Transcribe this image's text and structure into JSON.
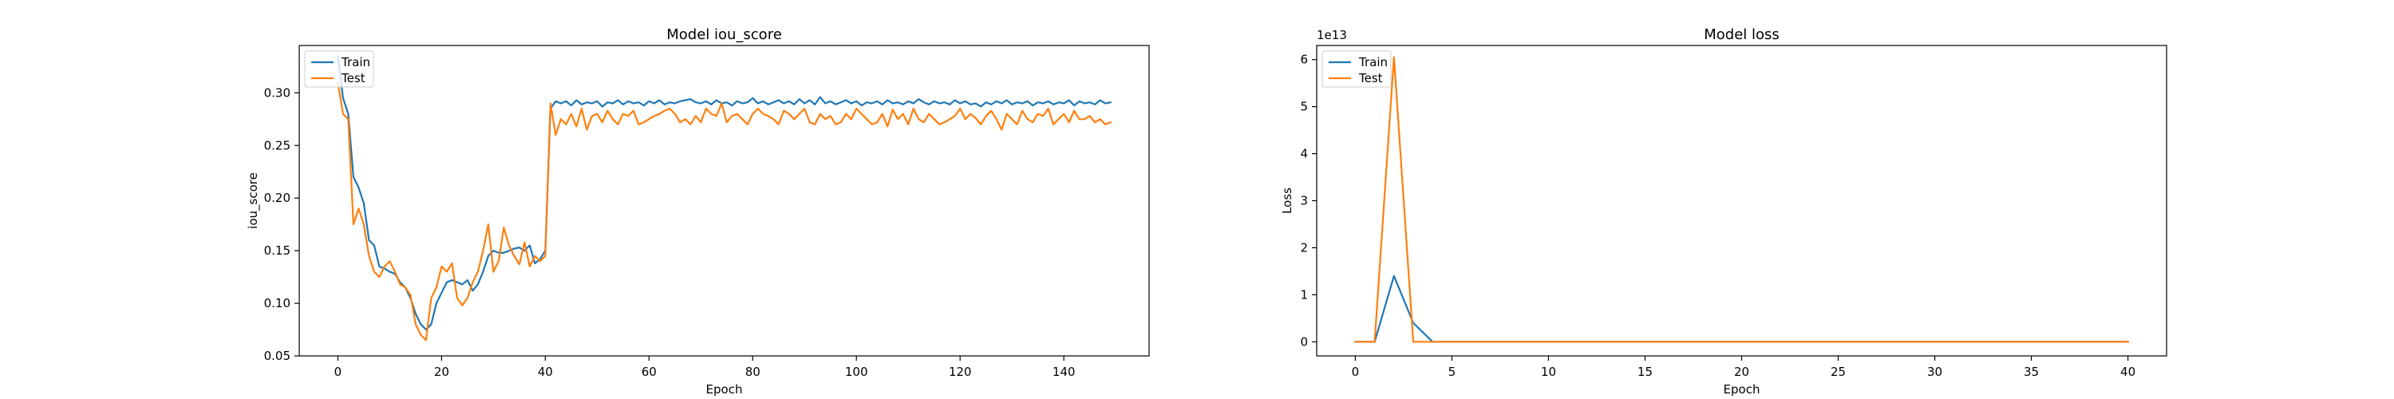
{
  "chart_data": [
    {
      "type": "line",
      "title": "Model iou_score",
      "xlabel": "Epoch",
      "ylabel": "iou_score",
      "xlim": [
        -7.45,
        156.45
      ],
      "ylim": [
        0.05,
        0.345
      ],
      "xticks": [
        0,
        20,
        40,
        60,
        80,
        100,
        120,
        140
      ],
      "xtick_labels": [
        "0",
        "20",
        "40",
        "60",
        "80",
        "100",
        "120",
        "140"
      ],
      "yticks": [
        0.05,
        0.1,
        0.15,
        0.2,
        0.25,
        0.3
      ],
      "ytick_labels": [
        "0.05",
        "0.10",
        "0.15",
        "0.20",
        "0.25",
        "0.30"
      ],
      "grid": false,
      "legend": {
        "position": "top-left",
        "entries": [
          "Train",
          "Test"
        ]
      },
      "series": [
        {
          "name": "Train",
          "color": "#1f77b4",
          "x": [
            0,
            1,
            2,
            3,
            4,
            5,
            6,
            7,
            8,
            9,
            10,
            11,
            12,
            13,
            14,
            15,
            16,
            17,
            18,
            19,
            20,
            21,
            22,
            23,
            24,
            25,
            26,
            27,
            28,
            29,
            30,
            31,
            32,
            33,
            34,
            35,
            36,
            37,
            38,
            39,
            40,
            41,
            42,
            43,
            44,
            45,
            46,
            47,
            48,
            49,
            50,
            51,
            52,
            53,
            54,
            55,
            56,
            57,
            58,
            59,
            60,
            61,
            62,
            63,
            64,
            65,
            66,
            67,
            68,
            69,
            70,
            71,
            72,
            73,
            74,
            75,
            76,
            77,
            78,
            79,
            80,
            81,
            82,
            83,
            84,
            85,
            86,
            87,
            88,
            89,
            90,
            91,
            92,
            93,
            94,
            95,
            96,
            97,
            98,
            99,
            100,
            101,
            102,
            103,
            104,
            105,
            106,
            107,
            108,
            109,
            110,
            111,
            112,
            113,
            114,
            115,
            116,
            117,
            118,
            119,
            120,
            121,
            122,
            123,
            124,
            125,
            126,
            127,
            128,
            129,
            130,
            131,
            132,
            133,
            134,
            135,
            136,
            137,
            138,
            139,
            140,
            141,
            142,
            143,
            144,
            145,
            146,
            147,
            148,
            149
          ],
          "y": [
            0.335,
            0.295,
            0.28,
            0.22,
            0.21,
            0.195,
            0.16,
            0.155,
            0.135,
            0.133,
            0.13,
            0.128,
            0.12,
            0.115,
            0.105,
            0.09,
            0.08,
            0.075,
            0.08,
            0.1,
            0.11,
            0.12,
            0.122,
            0.12,
            0.118,
            0.122,
            0.112,
            0.118,
            0.13,
            0.145,
            0.15,
            0.148,
            0.148,
            0.15,
            0.152,
            0.153,
            0.15,
            0.155,
            0.138,
            0.142,
            0.15,
            0.285,
            0.292,
            0.29,
            0.292,
            0.288,
            0.293,
            0.289,
            0.291,
            0.29,
            0.292,
            0.287,
            0.291,
            0.29,
            0.293,
            0.289,
            0.292,
            0.29,
            0.291,
            0.288,
            0.292,
            0.29,
            0.293,
            0.289,
            0.291,
            0.29,
            0.292,
            0.293,
            0.294,
            0.291,
            0.29,
            0.292,
            0.289,
            0.293,
            0.29,
            0.291,
            0.288,
            0.292,
            0.29,
            0.291,
            0.295,
            0.29,
            0.292,
            0.289,
            0.291,
            0.293,
            0.29,
            0.292,
            0.289,
            0.294,
            0.29,
            0.293,
            0.289,
            0.296,
            0.29,
            0.292,
            0.289,
            0.291,
            0.293,
            0.29,
            0.292,
            0.288,
            0.291,
            0.29,
            0.292,
            0.289,
            0.293,
            0.29,
            0.291,
            0.289,
            0.292,
            0.29,
            0.294,
            0.291,
            0.289,
            0.292,
            0.29,
            0.291,
            0.289,
            0.293,
            0.29,
            0.292,
            0.289,
            0.29,
            0.287,
            0.291,
            0.289,
            0.292,
            0.29,
            0.293,
            0.289,
            0.291,
            0.29,
            0.292,
            0.288,
            0.291,
            0.29,
            0.292,
            0.289,
            0.291,
            0.29,
            0.293,
            0.288,
            0.292,
            0.29,
            0.291,
            0.289,
            0.293,
            0.29,
            0.291
          ]
        },
        {
          "name": "Test",
          "color": "#ff7f0e",
          "x": [
            0,
            1,
            2,
            3,
            4,
            5,
            6,
            7,
            8,
            9,
            10,
            11,
            12,
            13,
            14,
            15,
            16,
            17,
            18,
            19,
            20,
            21,
            22,
            23,
            24,
            25,
            26,
            27,
            28,
            29,
            30,
            31,
            32,
            33,
            34,
            35,
            36,
            37,
            38,
            39,
            40,
            41,
            42,
            43,
            44,
            45,
            46,
            47,
            48,
            49,
            50,
            51,
            52,
            53,
            54,
            55,
            56,
            57,
            58,
            59,
            60,
            61,
            62,
            63,
            64,
            65,
            66,
            67,
            68,
            69,
            70,
            71,
            72,
            73,
            74,
            75,
            76,
            77,
            78,
            79,
            80,
            81,
            82,
            83,
            84,
            85,
            86,
            87,
            88,
            89,
            90,
            91,
            92,
            93,
            94,
            95,
            96,
            97,
            98,
            99,
            100,
            101,
            102,
            103,
            104,
            105,
            106,
            107,
            108,
            109,
            110,
            111,
            112,
            113,
            114,
            115,
            116,
            117,
            118,
            119,
            120,
            121,
            122,
            123,
            124,
            125,
            126,
            127,
            128,
            129,
            130,
            131,
            132,
            133,
            134,
            135,
            136,
            137,
            138,
            139,
            140,
            141,
            142,
            143,
            144,
            145,
            146,
            147,
            148,
            149
          ],
          "y": [
            0.31,
            0.28,
            0.275,
            0.175,
            0.19,
            0.175,
            0.145,
            0.13,
            0.125,
            0.135,
            0.14,
            0.13,
            0.118,
            0.115,
            0.108,
            0.08,
            0.07,
            0.065,
            0.105,
            0.115,
            0.135,
            0.13,
            0.138,
            0.105,
            0.098,
            0.105,
            0.12,
            0.13,
            0.15,
            0.175,
            0.13,
            0.14,
            0.172,
            0.155,
            0.145,
            0.137,
            0.158,
            0.135,
            0.145,
            0.14,
            0.145,
            0.29,
            0.26,
            0.275,
            0.27,
            0.28,
            0.268,
            0.285,
            0.265,
            0.278,
            0.28,
            0.272,
            0.283,
            0.275,
            0.27,
            0.28,
            0.278,
            0.283,
            0.27,
            0.272,
            0.275,
            0.278,
            0.28,
            0.283,
            0.285,
            0.28,
            0.272,
            0.275,
            0.27,
            0.278,
            0.272,
            0.285,
            0.28,
            0.278,
            0.29,
            0.272,
            0.278,
            0.28,
            0.275,
            0.27,
            0.28,
            0.285,
            0.28,
            0.278,
            0.275,
            0.27,
            0.283,
            0.28,
            0.275,
            0.28,
            0.285,
            0.272,
            0.27,
            0.28,
            0.275,
            0.278,
            0.27,
            0.272,
            0.28,
            0.275,
            0.285,
            0.28,
            0.275,
            0.27,
            0.272,
            0.28,
            0.268,
            0.284,
            0.275,
            0.28,
            0.27,
            0.285,
            0.275,
            0.272,
            0.28,
            0.275,
            0.27,
            0.272,
            0.275,
            0.278,
            0.285,
            0.275,
            0.28,
            0.276,
            0.27,
            0.278,
            0.283,
            0.275,
            0.265,
            0.28,
            0.275,
            0.27,
            0.283,
            0.275,
            0.272,
            0.28,
            0.278,
            0.285,
            0.27,
            0.275,
            0.28,
            0.272,
            0.283,
            0.275,
            0.275,
            0.278,
            0.272,
            0.275,
            0.27,
            0.272
          ]
        }
      ]
    },
    {
      "type": "line",
      "title": "Model loss",
      "xlabel": "Epoch",
      "ylabel": "Loss",
      "offset_text": "1e13",
      "xlim": [
        -2,
        42
      ],
      "ylim": [
        -3000000000000.0,
        63000000000000.0
      ],
      "xticks": [
        0,
        5,
        10,
        15,
        20,
        25,
        30,
        35,
        40
      ],
      "xtick_labels": [
        "0",
        "5",
        "10",
        "15",
        "20",
        "25",
        "30",
        "35",
        "40"
      ],
      "yticks": [
        0,
        10000000000000.0,
        20000000000000.0,
        30000000000000.0,
        40000000000000.0,
        50000000000000.0,
        60000000000000.0
      ],
      "ytick_labels": [
        "0",
        "1",
        "2",
        "3",
        "4",
        "5",
        "6"
      ],
      "grid": false,
      "legend": {
        "position": "top-left",
        "entries": [
          "Train",
          "Test"
        ]
      },
      "series": [
        {
          "name": "Train",
          "color": "#1f77b4",
          "x": [
            0,
            1,
            2,
            3,
            4,
            5,
            6,
            7,
            8,
            9,
            10,
            11,
            12,
            13,
            14,
            15,
            16,
            17,
            18,
            19,
            20,
            21,
            22,
            23,
            24,
            25,
            26,
            27,
            28,
            29,
            30,
            31,
            32,
            33,
            34,
            35,
            36,
            37,
            38,
            39,
            40
          ],
          "y": [
            0,
            0,
            14000000000000.0,
            4000000000000.0,
            0,
            0,
            0,
            0,
            0,
            0,
            0,
            0,
            0,
            0,
            0,
            0,
            0,
            0,
            0,
            0,
            0,
            0,
            0,
            0,
            0,
            0,
            0,
            0,
            0,
            0,
            0,
            0,
            0,
            0,
            0,
            0,
            0,
            0,
            0,
            0,
            0
          ]
        },
        {
          "name": "Test",
          "color": "#ff7f0e",
          "x": [
            0,
            1,
            2,
            3,
            4,
            5,
            6,
            7,
            8,
            9,
            10,
            11,
            12,
            13,
            14,
            15,
            16,
            17,
            18,
            19,
            20,
            21,
            22,
            23,
            24,
            25,
            26,
            27,
            28,
            29,
            30,
            31,
            32,
            33,
            34,
            35,
            36,
            37,
            38,
            39,
            40
          ],
          "y": [
            0,
            0,
            60500000000000.0,
            0,
            0,
            0,
            0,
            0,
            0,
            0,
            0,
            0,
            0,
            0,
            0,
            0,
            0,
            0,
            0,
            0,
            0,
            0,
            0,
            0,
            0,
            0,
            0,
            0,
            0,
            0,
            0,
            0,
            0,
            0,
            0,
            0,
            0,
            0,
            0,
            0,
            0
          ]
        }
      ]
    }
  ]
}
